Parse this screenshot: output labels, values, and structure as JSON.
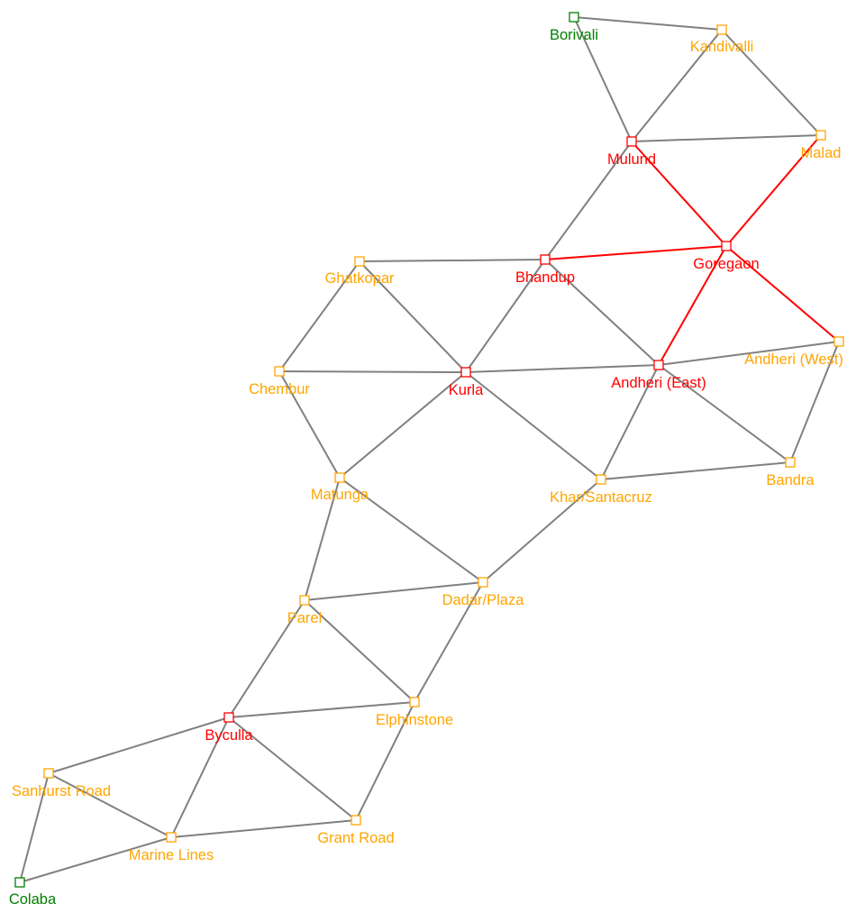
{
  "colors": {
    "edge": "#808080",
    "highlight": "#ff0000",
    "start_end": "#008000",
    "path": "#ff0000",
    "other": "#ffa500"
  },
  "nodes": [
    {
      "id": "borivali",
      "label": "Borivali",
      "status": "start_end"
    },
    {
      "id": "kandivalli",
      "label": "Kandivalli",
      "status": "other"
    },
    {
      "id": "mulund",
      "label": "Mulund",
      "status": "path"
    },
    {
      "id": "malad",
      "label": "Malad",
      "status": "other"
    },
    {
      "id": "goregaon",
      "label": "Goregaon",
      "status": "path"
    },
    {
      "id": "bhandup",
      "label": "Bhandup",
      "status": "path"
    },
    {
      "id": "ghatkopar",
      "label": "Ghatkopar",
      "status": "other"
    },
    {
      "id": "andheri_west",
      "label": "Andheri (West)",
      "status": "other"
    },
    {
      "id": "andheri_east",
      "label": "Andheri (East)",
      "status": "path"
    },
    {
      "id": "chembur",
      "label": "Chembur",
      "status": "other"
    },
    {
      "id": "kurla",
      "label": "Kurla",
      "status": "path"
    },
    {
      "id": "bandra",
      "label": "Bandra",
      "status": "other"
    },
    {
      "id": "matunga",
      "label": "Matunga",
      "status": "other"
    },
    {
      "id": "khar",
      "label": "Khar/Santacruz",
      "status": "other"
    },
    {
      "id": "dadar",
      "label": "Dadar/Plaza",
      "status": "other"
    },
    {
      "id": "parel",
      "label": "Parel",
      "status": "other"
    },
    {
      "id": "elphinstone",
      "label": "Elphinstone",
      "status": "other"
    },
    {
      "id": "byculla",
      "label": "Byculla",
      "status": "path"
    },
    {
      "id": "sanhurst",
      "label": "Sanhurst Road",
      "status": "other"
    },
    {
      "id": "grant_road",
      "label": "Grant Road",
      "status": "other"
    },
    {
      "id": "marine_lines",
      "label": "Marine Lines",
      "status": "other"
    },
    {
      "id": "colaba",
      "label": "Colaba",
      "status": "start_end"
    }
  ],
  "edges": [
    {
      "from": "borivali",
      "to": "kandivalli"
    },
    {
      "from": "borivali",
      "to": "mulund"
    },
    {
      "from": "kandivalli",
      "to": "mulund"
    },
    {
      "from": "kandivalli",
      "to": "malad"
    },
    {
      "from": "mulund",
      "to": "malad"
    },
    {
      "from": "mulund",
      "to": "goregaon",
      "highlight": true
    },
    {
      "from": "malad",
      "to": "goregaon",
      "highlight": true
    },
    {
      "from": "mulund",
      "to": "bhandup"
    },
    {
      "from": "bhandup",
      "to": "goregaon",
      "highlight": true
    },
    {
      "from": "goregaon",
      "to": "andheri_west",
      "highlight": true
    },
    {
      "from": "goregaon",
      "to": "andheri_east",
      "highlight": true
    },
    {
      "from": "ghatkopar",
      "to": "bhandup"
    },
    {
      "from": "ghatkopar",
      "to": "chembur"
    },
    {
      "from": "ghatkopar",
      "to": "kurla"
    },
    {
      "from": "bhandup",
      "to": "kurla"
    },
    {
      "from": "bhandup",
      "to": "andheri_east"
    },
    {
      "from": "chembur",
      "to": "kurla"
    },
    {
      "from": "kurla",
      "to": "andheri_east"
    },
    {
      "from": "andheri_east",
      "to": "andheri_west"
    },
    {
      "from": "andheri_west",
      "to": "bandra"
    },
    {
      "from": "andheri_east",
      "to": "bandra"
    },
    {
      "from": "andheri_east",
      "to": "khar"
    },
    {
      "from": "chembur",
      "to": "matunga"
    },
    {
      "from": "kurla",
      "to": "matunga"
    },
    {
      "from": "kurla",
      "to": "khar"
    },
    {
      "from": "khar",
      "to": "bandra"
    },
    {
      "from": "matunga",
      "to": "dadar"
    },
    {
      "from": "khar",
      "to": "dadar"
    },
    {
      "from": "matunga",
      "to": "parel"
    },
    {
      "from": "parel",
      "to": "dadar"
    },
    {
      "from": "parel",
      "to": "elphinstone"
    },
    {
      "from": "dadar",
      "to": "elphinstone"
    },
    {
      "from": "parel",
      "to": "byculla"
    },
    {
      "from": "byculla",
      "to": "elphinstone"
    },
    {
      "from": "elphinstone",
      "to": "grant_road"
    },
    {
      "from": "byculla",
      "to": "grant_road"
    },
    {
      "from": "byculla",
      "to": "sanhurst"
    },
    {
      "from": "byculla",
      "to": "marine_lines"
    },
    {
      "from": "sanhurst",
      "to": "marine_lines"
    },
    {
      "from": "marine_lines",
      "to": "grant_road"
    },
    {
      "from": "sanhurst",
      "to": "colaba"
    },
    {
      "from": "colaba",
      "to": "marine_lines"
    }
  ]
}
